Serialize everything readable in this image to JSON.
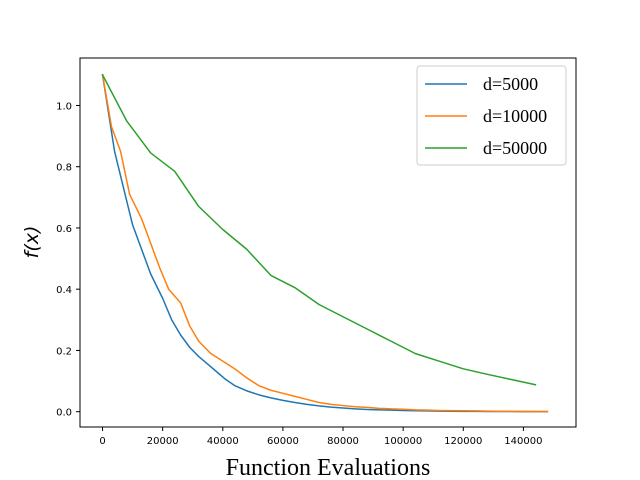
{
  "chart_data": {
    "type": "line",
    "title": "",
    "xlabel": "Function Evaluations",
    "ylabel": "f(x)",
    "xlim": [
      -7500,
      157500
    ],
    "ylim": [
      -0.05,
      1.155
    ],
    "xticks": [
      0,
      20000,
      40000,
      60000,
      80000,
      100000,
      120000,
      140000
    ],
    "yticks": [
      0.0,
      0.2,
      0.4,
      0.6,
      0.8,
      1.0
    ],
    "xtick_labels": [
      "0",
      "20000",
      "40000",
      "60000",
      "80000",
      "100000",
      "120000",
      "140000"
    ],
    "ytick_labels": [
      "0.0",
      "0.2",
      "0.4",
      "0.6",
      "0.8",
      "1.0"
    ],
    "grid": false,
    "legend_position": "top-right",
    "series": [
      {
        "name": "d=5000",
        "color": "#1f77b4",
        "x": [
          0,
          4000,
          8000,
          10000,
          13000,
          16000,
          20000,
          23000,
          26000,
          29000,
          32000,
          35000,
          38000,
          41000,
          44000,
          48000,
          52000,
          56000,
          60000,
          64000,
          68000,
          72000,
          76000,
          80000,
          84000,
          88000,
          92000,
          96000,
          100000,
          104000,
          108000,
          112000,
          116000,
          120000,
          124000,
          128000,
          132000,
          136000,
          140000,
          144000,
          148000
        ],
        "y": [
          1.1,
          0.85,
          0.69,
          0.61,
          0.53,
          0.45,
          0.37,
          0.3,
          0.25,
          0.21,
          0.18,
          0.155,
          0.13,
          0.105,
          0.085,
          0.068,
          0.055,
          0.045,
          0.037,
          0.03,
          0.024,
          0.019,
          0.015,
          0.012,
          0.009,
          0.007,
          0.006,
          0.005,
          0.004,
          0.003,
          0.0025,
          0.002,
          0.0015,
          0.001,
          0.001,
          0.0008,
          0.0006,
          0.0005,
          0.0004,
          0.0003,
          0.0002
        ]
      },
      {
        "name": "d=10000",
        "color": "#ff7f0e",
        "x": [
          0,
          3000,
          6000,
          9000,
          13000,
          16000,
          19000,
          22000,
          26000,
          29000,
          32000,
          36000,
          40000,
          44000,
          48000,
          52000,
          56000,
          60000,
          64000,
          68000,
          72000,
          76000,
          80000,
          84000,
          88000,
          92000,
          96000,
          100000,
          104000,
          108000,
          112000,
          116000,
          120000,
          124000,
          128000,
          132000,
          136000,
          140000,
          144000,
          148000
        ],
        "y": [
          1.1,
          0.93,
          0.85,
          0.71,
          0.63,
          0.55,
          0.47,
          0.4,
          0.355,
          0.28,
          0.23,
          0.19,
          0.165,
          0.14,
          0.11,
          0.085,
          0.07,
          0.06,
          0.05,
          0.04,
          0.03,
          0.024,
          0.02,
          0.016,
          0.014,
          0.011,
          0.009,
          0.008,
          0.006,
          0.005,
          0.004,
          0.0035,
          0.003,
          0.0025,
          0.002,
          0.0015,
          0.0012,
          0.001,
          0.0008,
          0.0006
        ]
      },
      {
        "name": "d=50000",
        "color": "#2ca02c",
        "x": [
          0,
          8000,
          16000,
          24000,
          32000,
          40000,
          48000,
          56000,
          64000,
          72000,
          80000,
          88000,
          96000,
          104000,
          112000,
          120000,
          128000,
          136000,
          144000
        ],
        "y": [
          1.1,
          0.95,
          0.845,
          0.785,
          0.67,
          0.595,
          0.53,
          0.445,
          0.405,
          0.35,
          0.31,
          0.27,
          0.23,
          0.19,
          0.165,
          0.14,
          0.122,
          0.105,
          0.088
        ]
      }
    ]
  }
}
